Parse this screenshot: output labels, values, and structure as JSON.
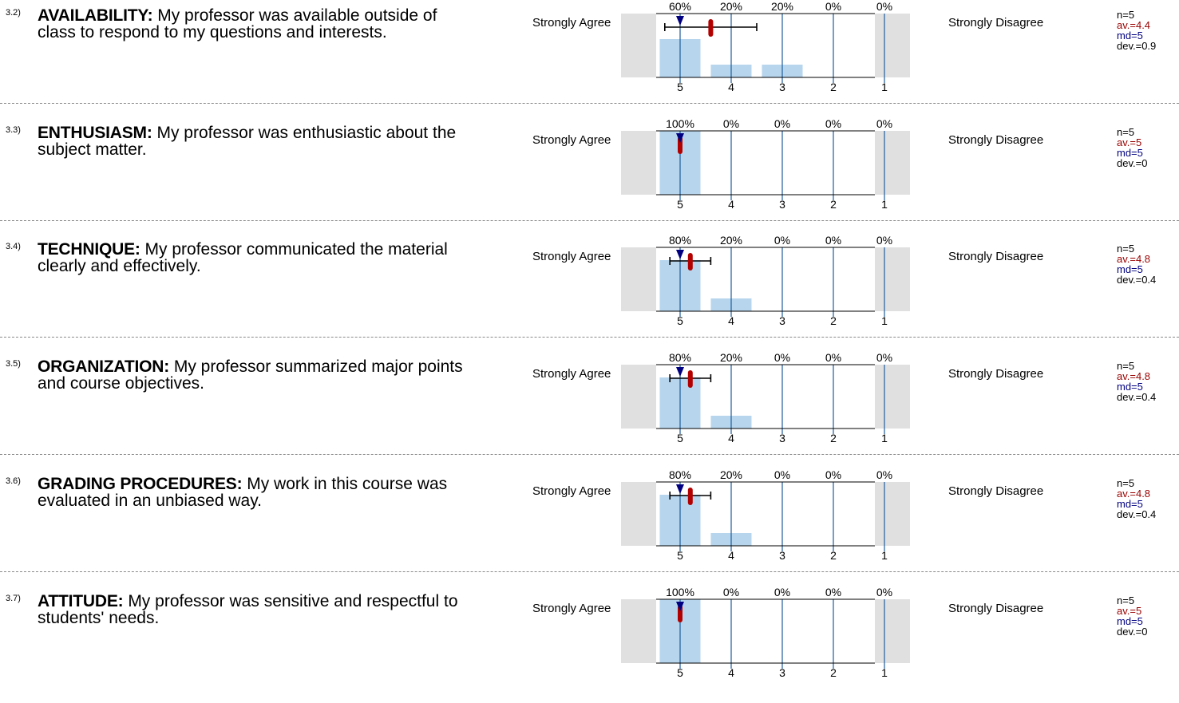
{
  "scale_labels": {
    "left": "Strongly Agree",
    "right": "Strongly Disagree"
  },
  "colors": {
    "bar": "#b7d6ee",
    "gridline": "#1f5e9c",
    "shade": "#e0e0e0",
    "average": "#b30000",
    "median": "#000080",
    "deviation": "#000000"
  },
  "items": [
    {
      "number": "3.2)",
      "title": "AVAILABILITY:",
      "text": "My professor was available outside of class to respond to my questions and interests.",
      "stats": {
        "n": "n=5",
        "av": "av.=4.4",
        "md": "md=5",
        "dev": "dev.=0.9"
      }
    },
    {
      "number": "3.3)",
      "title": "ENTHUSIASM:",
      "text": "My professor was enthusiastic about the subject matter.",
      "stats": {
        "n": "n=5",
        "av": "av.=5",
        "md": "md=5",
        "dev": "dev.=0"
      }
    },
    {
      "number": "3.4)",
      "title": "TECHNIQUE:",
      "text": "My professor communicated the material clearly and effectively.",
      "stats": {
        "n": "n=5",
        "av": "av.=4.8",
        "md": "md=5",
        "dev": "dev.=0.4"
      }
    },
    {
      "number": "3.5)",
      "title": "ORGANIZATION:",
      "text": "My professor summarized major points and course objectives.",
      "stats": {
        "n": "n=5",
        "av": "av.=4.8",
        "md": "md=5",
        "dev": "dev.=0.4"
      }
    },
    {
      "number": "3.6)",
      "title": "GRADING PROCEDURES:",
      "text": "My work in this course was evaluated in an unbiased way.",
      "stats": {
        "n": "n=5",
        "av": "av.=4.8",
        "md": "md=5",
        "dev": "dev.=0.4"
      }
    },
    {
      "number": "3.7)",
      "title": "ATTITUDE:",
      "text": "My professor was sensitive and respectful to students' needs.",
      "stats": {
        "n": "n=5",
        "av": "av.=5",
        "md": "md=5",
        "dev": "dev.=0"
      }
    }
  ],
  "chart_data": [
    {
      "type": "bar",
      "categories": [
        "5",
        "4",
        "3",
        "2",
        "1"
      ],
      "values": [
        60,
        20,
        20,
        0,
        0
      ],
      "labels": [
        "60%",
        "20%",
        "20%",
        "0%",
        "0%"
      ],
      "ylim": [
        0,
        100
      ],
      "average": 4.4,
      "median": 5,
      "deviation": 0.9
    },
    {
      "type": "bar",
      "categories": [
        "5",
        "4",
        "3",
        "2",
        "1"
      ],
      "values": [
        100,
        0,
        0,
        0,
        0
      ],
      "labels": [
        "100%",
        "0%",
        "0%",
        "0%",
        "0%"
      ],
      "ylim": [
        0,
        100
      ],
      "average": 5,
      "median": 5,
      "deviation": 0
    },
    {
      "type": "bar",
      "categories": [
        "5",
        "4",
        "3",
        "2",
        "1"
      ],
      "values": [
        80,
        20,
        0,
        0,
        0
      ],
      "labels": [
        "80%",
        "20%",
        "0%",
        "0%",
        "0%"
      ],
      "ylim": [
        0,
        100
      ],
      "average": 4.8,
      "median": 5,
      "deviation": 0.4
    },
    {
      "type": "bar",
      "categories": [
        "5",
        "4",
        "3",
        "2",
        "1"
      ],
      "values": [
        80,
        20,
        0,
        0,
        0
      ],
      "labels": [
        "80%",
        "20%",
        "0%",
        "0%",
        "0%"
      ],
      "ylim": [
        0,
        100
      ],
      "average": 4.8,
      "median": 5,
      "deviation": 0.4
    },
    {
      "type": "bar",
      "categories": [
        "5",
        "4",
        "3",
        "2",
        "1"
      ],
      "values": [
        80,
        20,
        0,
        0,
        0
      ],
      "labels": [
        "80%",
        "20%",
        "0%",
        "0%",
        "0%"
      ],
      "ylim": [
        0,
        100
      ],
      "average": 4.8,
      "median": 5,
      "deviation": 0.4
    },
    {
      "type": "bar",
      "categories": [
        "5",
        "4",
        "3",
        "2",
        "1"
      ],
      "values": [
        100,
        0,
        0,
        0,
        0
      ],
      "labels": [
        "100%",
        "0%",
        "0%",
        "0%",
        "0%"
      ],
      "ylim": [
        0,
        100
      ],
      "average": 5,
      "median": 5,
      "deviation": 0
    }
  ]
}
